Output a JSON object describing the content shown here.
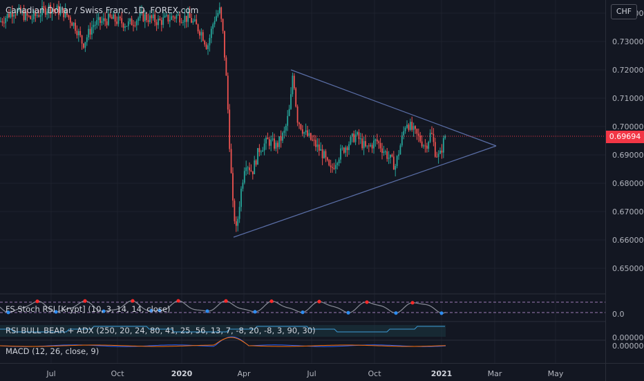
{
  "header": {
    "title": "Canadian Dollar / Swiss Franc, 1D, FOREX.com",
    "currency": "CHF"
  },
  "price_axis": {
    "ticks": [
      "0.74000",
      "0.73000",
      "0.72000",
      "0.71000",
      "0.70000",
      "0.69000",
      "0.68000",
      "0.67000",
      "0.66000",
      "0.65000"
    ],
    "current_price": "0.69694"
  },
  "time_axis": {
    "labels": [
      {
        "text": "Jul",
        "bold": false
      },
      {
        "text": "Oct",
        "bold": false
      },
      {
        "text": "2020",
        "bold": true
      },
      {
        "text": "Apr",
        "bold": false
      },
      {
        "text": "Jul",
        "bold": false
      },
      {
        "text": "Oct",
        "bold": false
      },
      {
        "text": "2021",
        "bold": true
      },
      {
        "text": "Mar",
        "bold": false
      },
      {
        "text": "May",
        "bold": false
      }
    ]
  },
  "indicators": {
    "stoch_rsi": {
      "title": "FS Stoch RSI [Krypt] (10, 3, 14, 14, close)",
      "axis": "0.0"
    },
    "rsi_bull_bear": {
      "title": "RSI BULL BEAR + ADX (250, 20, 24, 80, 41, 25, 56, 13, 7, -8, 20, -8, 3, 90, 30)",
      "axis": "0.00000"
    },
    "macd": {
      "title": "MACD (12, 26, close, 9)",
      "axis": "0.00000"
    }
  },
  "colors": {
    "background": "#131722",
    "bull": "#26a69a",
    "bear": "#ef5350",
    "trendline": "#5b6fa8",
    "price_tag": "#f23645"
  }
}
